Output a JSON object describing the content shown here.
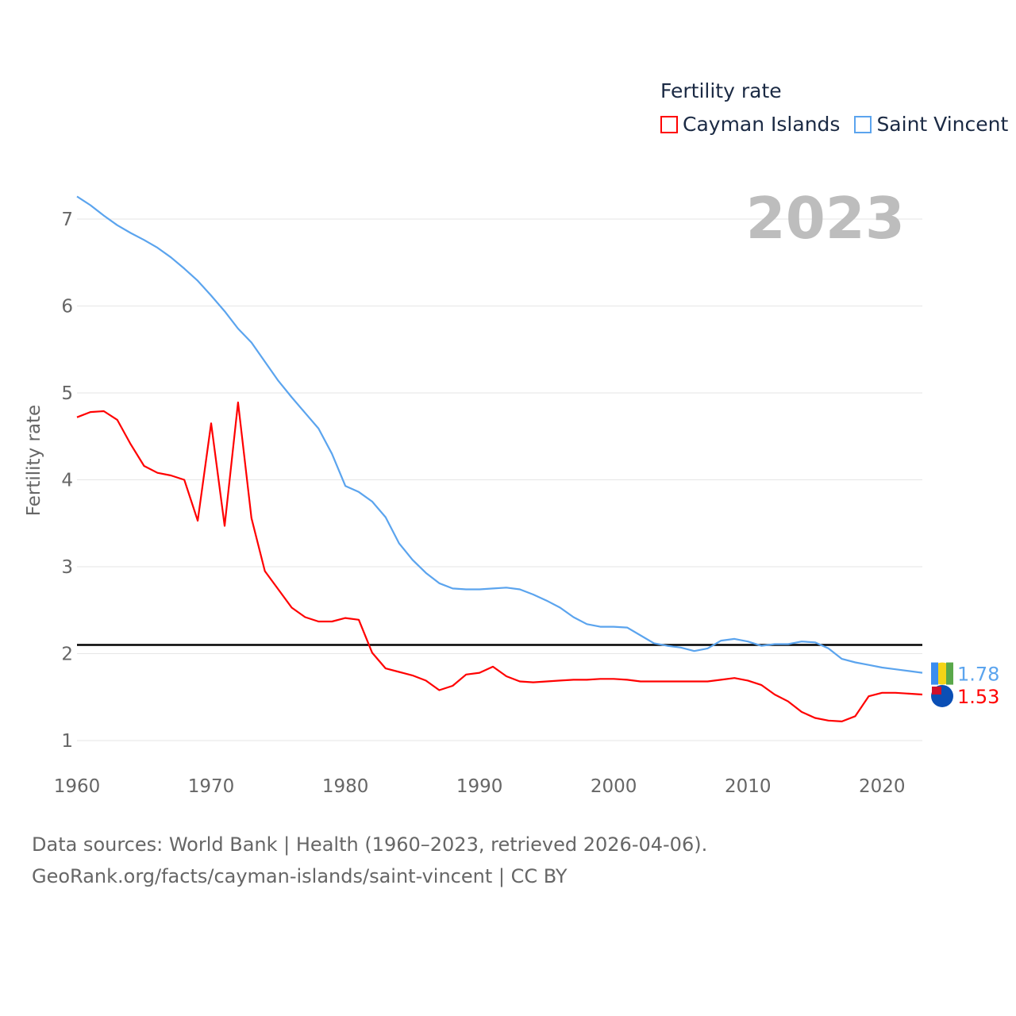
{
  "chart_data": {
    "type": "line",
    "title": "Fertility rate",
    "ylabel": "Fertility rate",
    "xlabel": "",
    "xlim": [
      1960,
      2023
    ],
    "ylim": [
      0.7,
      7.3
    ],
    "xticks": [
      1960,
      1970,
      1980,
      1990,
      2000,
      2010,
      2020
    ],
    "yticks": [
      1,
      2,
      3,
      4,
      5,
      6,
      7
    ],
    "grid": true,
    "legend_position": "top-right",
    "year_label": "2023",
    "reference_line": 2.1,
    "x_start": 1960,
    "series": [
      {
        "name": "Cayman Islands",
        "color": "#ff0000",
        "end_label": "1.53",
        "values": [
          4.72,
          4.78,
          4.79,
          4.69,
          4.41,
          4.16,
          4.08,
          4.05,
          4.0,
          3.53,
          4.65,
          3.47,
          4.89,
          3.56,
          2.95,
          2.74,
          2.53,
          2.42,
          2.37,
          2.37,
          2.41,
          2.39,
          2.01,
          1.83,
          1.79,
          1.75,
          1.69,
          1.58,
          1.63,
          1.76,
          1.78,
          1.85,
          1.74,
          1.68,
          1.67,
          1.68,
          1.69,
          1.7,
          1.7,
          1.71,
          1.71,
          1.7,
          1.68,
          1.68,
          1.68,
          1.68,
          1.68,
          1.68,
          1.7,
          1.72,
          1.69,
          1.64,
          1.53,
          1.45,
          1.33,
          1.26,
          1.23,
          1.22,
          1.28,
          1.51,
          1.55,
          1.55,
          1.54,
          1.53
        ]
      },
      {
        "name": "Saint Vincent",
        "color": "#5ba4ee",
        "end_label": "1.78",
        "values": [
          7.26,
          7.16,
          7.04,
          6.93,
          6.84,
          6.76,
          6.67,
          6.56,
          6.43,
          6.29,
          6.12,
          5.94,
          5.74,
          5.58,
          5.36,
          5.14,
          4.95,
          4.77,
          4.59,
          4.3,
          3.93,
          3.86,
          3.75,
          3.57,
          3.27,
          3.08,
          2.93,
          2.81,
          2.75,
          2.74,
          2.74,
          2.75,
          2.76,
          2.74,
          2.68,
          2.61,
          2.53,
          2.42,
          2.34,
          2.31,
          2.31,
          2.3,
          2.21,
          2.12,
          2.09,
          2.07,
          2.03,
          2.06,
          2.15,
          2.17,
          2.14,
          2.09,
          2.11,
          2.11,
          2.14,
          2.13,
          2.06,
          1.94,
          1.9,
          1.87,
          1.84,
          1.82,
          1.8,
          1.78
        ]
      }
    ]
  },
  "legend": {
    "title": "Fertility rate",
    "items": [
      "Cayman Islands",
      "Saint Vincent"
    ]
  },
  "footer": {
    "line1": "Data sources: World Bank | Health (1960–2023, retrieved 2026-04-06).",
    "line2": "GeoRank.org/facts/cayman-islands/saint-vincent | CC BY"
  }
}
